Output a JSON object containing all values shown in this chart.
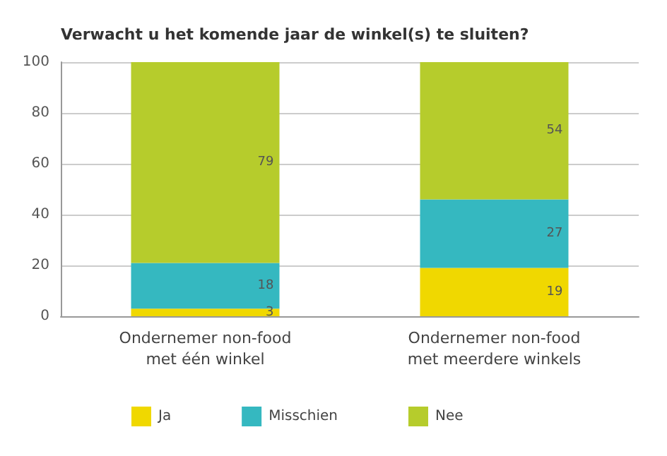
{
  "chart_data": {
    "type": "bar",
    "title": "Verwacht u het komende jaar de winkel(s) te sluiten?",
    "categories": [
      "Ondernemer non-food\nmet één winkel",
      "Ondernemer non-food\nmet meerdere winkels"
    ],
    "stacked": true,
    "series": [
      {
        "name": "Ja",
        "color": "#f0d800",
        "values": [
          3,
          19
        ]
      },
      {
        "name": "Misschien",
        "color": "#35b8c0",
        "values": [
          18,
          27
        ]
      },
      {
        "name": "Nee",
        "color": "#b6cc2c",
        "values": [
          79,
          54
        ]
      }
    ],
    "ylim": [
      0,
      100
    ],
    "yticks": [
      0,
      20,
      40,
      60,
      80,
      100
    ],
    "grid": "y",
    "legend": "bottom",
    "data_labels": true
  }
}
